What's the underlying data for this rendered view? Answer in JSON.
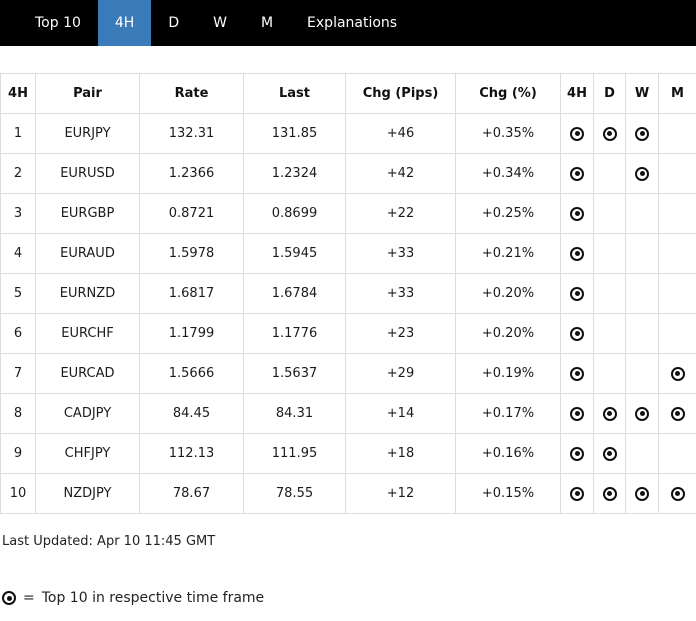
{
  "nav": {
    "items": [
      {
        "label": "Top 10",
        "active": false
      },
      {
        "label": "4H",
        "active": true
      },
      {
        "label": "D",
        "active": false
      },
      {
        "label": "W",
        "active": false
      },
      {
        "label": "M",
        "active": false
      },
      {
        "label": "Explanations",
        "active": false
      }
    ]
  },
  "table": {
    "headers": [
      "4H",
      "Pair",
      "Rate",
      "Last",
      "Chg (Pips)",
      "Chg (%)",
      "4H",
      "D",
      "W",
      "M"
    ],
    "rows": [
      {
        "rank": "1",
        "pair": "EURJPY",
        "rate": "132.31",
        "last": "131.85",
        "chg_pips": "+46",
        "chg_pct": "+0.35%",
        "tf": {
          "h4": true,
          "d": true,
          "w": true,
          "m": false
        }
      },
      {
        "rank": "2",
        "pair": "EURUSD",
        "rate": "1.2366",
        "last": "1.2324",
        "chg_pips": "+42",
        "chg_pct": "+0.34%",
        "tf": {
          "h4": true,
          "d": false,
          "w": true,
          "m": false
        }
      },
      {
        "rank": "3",
        "pair": "EURGBP",
        "rate": "0.8721",
        "last": "0.8699",
        "chg_pips": "+22",
        "chg_pct": "+0.25%",
        "tf": {
          "h4": true,
          "d": false,
          "w": false,
          "m": false
        }
      },
      {
        "rank": "4",
        "pair": "EURAUD",
        "rate": "1.5978",
        "last": "1.5945",
        "chg_pips": "+33",
        "chg_pct": "+0.21%",
        "tf": {
          "h4": true,
          "d": false,
          "w": false,
          "m": false
        }
      },
      {
        "rank": "5",
        "pair": "EURNZD",
        "rate": "1.6817",
        "last": "1.6784",
        "chg_pips": "+33",
        "chg_pct": "+0.20%",
        "tf": {
          "h4": true,
          "d": false,
          "w": false,
          "m": false
        }
      },
      {
        "rank": "6",
        "pair": "EURCHF",
        "rate": "1.1799",
        "last": "1.1776",
        "chg_pips": "+23",
        "chg_pct": "+0.20%",
        "tf": {
          "h4": true,
          "d": false,
          "w": false,
          "m": false
        }
      },
      {
        "rank": "7",
        "pair": "EURCAD",
        "rate": "1.5666",
        "last": "1.5637",
        "chg_pips": "+29",
        "chg_pct": "+0.19%",
        "tf": {
          "h4": true,
          "d": false,
          "w": false,
          "m": true
        }
      },
      {
        "rank": "8",
        "pair": "CADJPY",
        "rate": "84.45",
        "last": "84.31",
        "chg_pips": "+14",
        "chg_pct": "+0.17%",
        "tf": {
          "h4": true,
          "d": true,
          "w": true,
          "m": true
        }
      },
      {
        "rank": "9",
        "pair": "CHFJPY",
        "rate": "112.13",
        "last": "111.95",
        "chg_pips": "+18",
        "chg_pct": "+0.16%",
        "tf": {
          "h4": true,
          "d": true,
          "w": false,
          "m": false
        }
      },
      {
        "rank": "10",
        "pair": "NZDJPY",
        "rate": "78.67",
        "last": "78.55",
        "chg_pips": "+12",
        "chg_pct": "+0.15%",
        "tf": {
          "h4": true,
          "d": true,
          "w": true,
          "m": true
        }
      }
    ]
  },
  "footer": {
    "last_updated": "Last Updated: Apr 10 11:45 GMT",
    "legend_equals": "=",
    "legend_text": "Top 10 in respective time frame"
  },
  "colors": {
    "nav_bg": "#000000",
    "active_tab_bg": "#3a7cba",
    "border": "#dddddd",
    "text": "#1b1b1b"
  }
}
